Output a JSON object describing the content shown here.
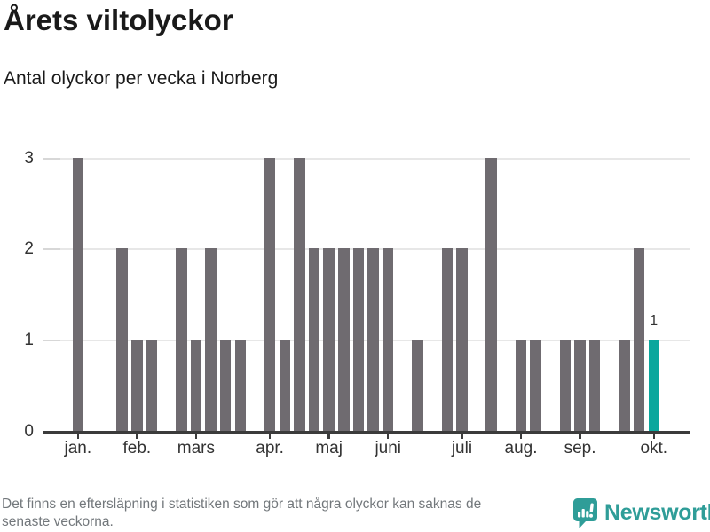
{
  "title": "Årets viltolyckor",
  "subtitle": "Antal olyckor per vecka i Norberg",
  "footer": {
    "note_line1": "Det finns en eftersläpning i statistiken som gör att några olyckor kan saknas de",
    "note_line2": "senaste veckorna.",
    "brand": "Newsworthy"
  },
  "colors": {
    "bar": "#6f6b70",
    "highlight": "#0aa79d",
    "gridline": "#e7e7e7",
    "ytick_dash": "#d7d7d7",
    "axis": "#3b3b3b",
    "text": "#1a1a1a",
    "muted": "#72777b",
    "brand": "#2f9d98"
  },
  "chart_data": {
    "type": "bar",
    "title": "Årets viltolyckor",
    "subtitle": "Antal olyckor per vecka i Norberg",
    "xlabel": "",
    "ylabel": "",
    "x_weeks": [
      1,
      2,
      3,
      4,
      5,
      6,
      7,
      8,
      9,
      10,
      11,
      12,
      13,
      14,
      15,
      16,
      17,
      18,
      19,
      20,
      21,
      22,
      23,
      24,
      25,
      26,
      27,
      28,
      29,
      30,
      31,
      32,
      33,
      34,
      35,
      36,
      37,
      38,
      39,
      40
    ],
    "values": [
      3,
      0,
      0,
      2,
      1,
      1,
      0,
      2,
      1,
      2,
      1,
      1,
      0,
      3,
      1,
      3,
      2,
      2,
      2,
      2,
      2,
      2,
      0,
      1,
      0,
      2,
      2,
      0,
      3,
      0,
      1,
      1,
      0,
      1,
      1,
      1,
      0,
      1,
      2,
      1
    ],
    "highlight_index": 39,
    "highlight_value_label": "1",
    "ylim": [
      0,
      3
    ],
    "yticks": [
      0,
      1,
      2,
      3
    ],
    "month_ticks": [
      {
        "index": 0,
        "label": "jan."
      },
      {
        "index": 4,
        "label": "feb."
      },
      {
        "index": 8,
        "label": "mars"
      },
      {
        "index": 13,
        "label": "apr."
      },
      {
        "index": 17,
        "label": "maj"
      },
      {
        "index": 21,
        "label": "juni"
      },
      {
        "index": 26,
        "label": "juli"
      },
      {
        "index": 30,
        "label": "aug."
      },
      {
        "index": 34,
        "label": "sep."
      },
      {
        "index": 39,
        "label": "okt."
      }
    ],
    "grid": true,
    "legend": false
  }
}
